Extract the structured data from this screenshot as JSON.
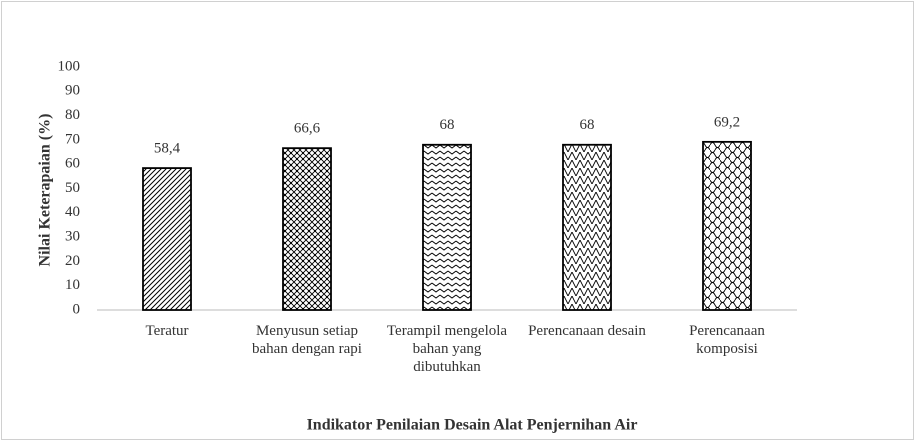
{
  "chart_data": {
    "type": "bar",
    "x_label": "Indikator  Penilaian Desain Alat Penjernihan Air",
    "y_label": "Nilai Keterapaian (%)",
    "categories": [
      "Teratur",
      "Menyusun setiap bahan dengan rapi",
      "Terampil mengelola bahan yang dibutuhkan",
      "Perencanaan desain",
      "Perencanaan komposisi"
    ],
    "values": [
      58.4,
      66.6,
      68,
      68,
      69.2
    ],
    "value_labels": [
      "58,4",
      "66,6",
      "68",
      "68",
      "69,2"
    ],
    "color": "#000000",
    "ylim": [
      0,
      100
    ],
    "yticks": [
      0,
      10,
      20,
      30,
      40,
      50,
      60,
      70,
      80,
      90,
      100
    ],
    "grid": false
  }
}
